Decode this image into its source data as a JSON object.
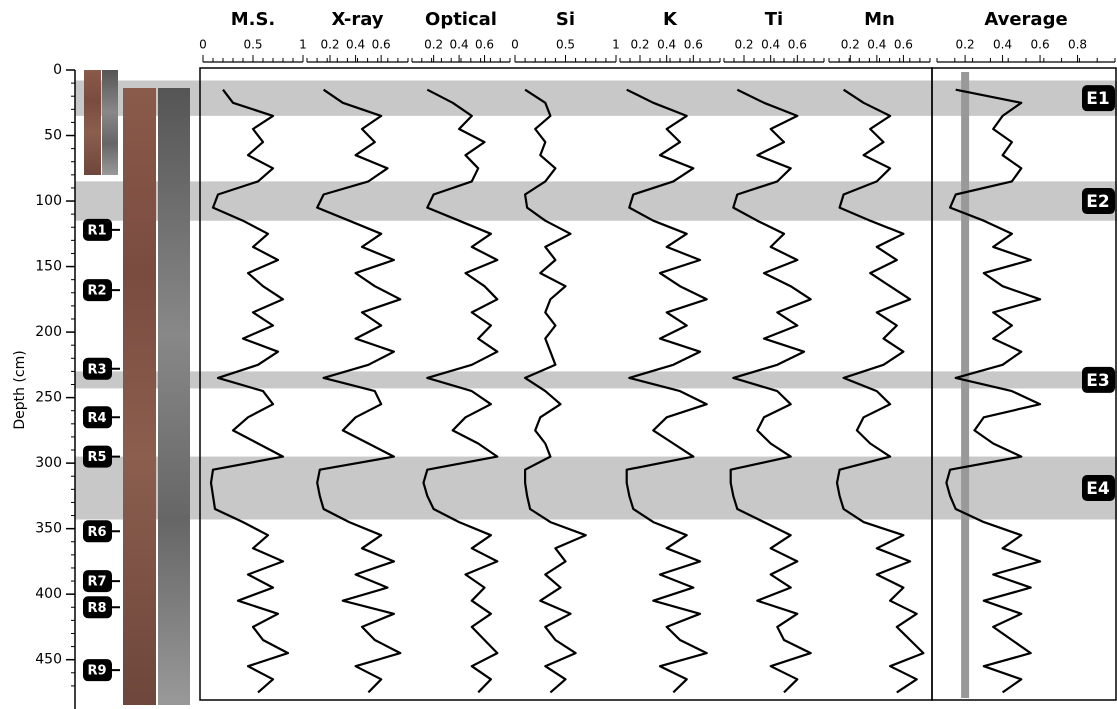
{
  "chart_data": {
    "type": "line",
    "y_label": "Depth (cm)",
    "ylim": [
      0,
      480
    ],
    "yticks": [
      0,
      50,
      100,
      150,
      200,
      250,
      300,
      350,
      400,
      450
    ],
    "depth": [
      15,
      25,
      35,
      45,
      55,
      65,
      75,
      85,
      95,
      105,
      115,
      125,
      135,
      145,
      155,
      165,
      175,
      185,
      195,
      205,
      215,
      225,
      235,
      245,
      255,
      265,
      275,
      285,
      295,
      305,
      315,
      325,
      335,
      345,
      355,
      365,
      375,
      385,
      395,
      405,
      415,
      425,
      435,
      445,
      455,
      465,
      475
    ],
    "panels": [
      {
        "title": "M.S.",
        "xlim": [
          0,
          1
        ],
        "xticks": [
          0,
          0.5,
          1
        ],
        "values": [
          0.2,
          0.3,
          0.7,
          0.5,
          0.6,
          0.45,
          0.7,
          0.55,
          0.15,
          0.1,
          0.4,
          0.65,
          0.5,
          0.75,
          0.45,
          0.6,
          0.8,
          0.5,
          0.7,
          0.4,
          0.75,
          0.55,
          0.15,
          0.6,
          0.7,
          0.45,
          0.3,
          0.55,
          0.8,
          0.1,
          0.08,
          0.1,
          0.12,
          0.4,
          0.65,
          0.5,
          0.8,
          0.45,
          0.7,
          0.35,
          0.75,
          0.5,
          0.6,
          0.85,
          0.45,
          0.7,
          0.55
        ]
      },
      {
        "title": "X-ray",
        "xlim": [
          0.02,
          0.81
        ],
        "xticks": [
          0.2,
          0.4,
          0.6
        ],
        "values": [
          0.15,
          0.3,
          0.6,
          0.45,
          0.55,
          0.4,
          0.65,
          0.5,
          0.15,
          0.1,
          0.35,
          0.6,
          0.45,
          0.7,
          0.4,
          0.55,
          0.75,
          0.45,
          0.6,
          0.4,
          0.7,
          0.5,
          0.15,
          0.55,
          0.6,
          0.4,
          0.3,
          0.5,
          0.7,
          0.12,
          0.1,
          0.12,
          0.15,
          0.35,
          0.6,
          0.45,
          0.7,
          0.4,
          0.65,
          0.3,
          0.7,
          0.45,
          0.55,
          0.75,
          0.4,
          0.6,
          0.5
        ]
      },
      {
        "title": "Optical",
        "xlim": [
          0.03,
          0.8
        ],
        "xticks": [
          0.2,
          0.4,
          0.6
        ],
        "values": [
          0.15,
          0.35,
          0.5,
          0.4,
          0.6,
          0.45,
          0.55,
          0.5,
          0.2,
          0.15,
          0.4,
          0.65,
          0.5,
          0.7,
          0.45,
          0.6,
          0.7,
          0.5,
          0.65,
          0.55,
          0.7,
          0.5,
          0.15,
          0.5,
          0.65,
          0.45,
          0.35,
          0.55,
          0.7,
          0.15,
          0.12,
          0.15,
          0.2,
          0.4,
          0.65,
          0.5,
          0.7,
          0.45,
          0.6,
          0.5,
          0.65,
          0.5,
          0.6,
          0.7,
          0.5,
          0.65,
          0.55
        ]
      },
      {
        "title": "Si",
        "xlim": [
          0,
          1
        ],
        "xticks": [
          0,
          0.5,
          1
        ],
        "values": [
          0.1,
          0.3,
          0.35,
          0.2,
          0.3,
          0.25,
          0.4,
          0.3,
          0.1,
          0.12,
          0.3,
          0.55,
          0.3,
          0.4,
          0.25,
          0.5,
          0.35,
          0.3,
          0.4,
          0.3,
          0.35,
          0.4,
          0.1,
          0.3,
          0.45,
          0.25,
          0.2,
          0.3,
          0.35,
          0.1,
          0.1,
          0.12,
          0.15,
          0.35,
          0.7,
          0.4,
          0.5,
          0.3,
          0.45,
          0.25,
          0.55,
          0.3,
          0.4,
          0.6,
          0.3,
          0.5,
          0.35
        ]
      },
      {
        "title": "K",
        "xlim": [
          0.05,
          0.8
        ],
        "xticks": [
          0.2,
          0.4,
          0.6
        ],
        "values": [
          0.1,
          0.3,
          0.55,
          0.4,
          0.5,
          0.35,
          0.6,
          0.45,
          0.15,
          0.12,
          0.3,
          0.55,
          0.4,
          0.65,
          0.35,
          0.5,
          0.7,
          0.4,
          0.55,
          0.35,
          0.65,
          0.45,
          0.12,
          0.5,
          0.7,
          0.4,
          0.3,
          0.45,
          0.6,
          0.1,
          0.1,
          0.12,
          0.15,
          0.3,
          0.55,
          0.4,
          0.65,
          0.35,
          0.6,
          0.3,
          0.65,
          0.4,
          0.5,
          0.7,
          0.35,
          0.55,
          0.45
        ]
      },
      {
        "title": "Ti",
        "xlim": [
          0.05,
          0.8
        ],
        "xticks": [
          0.2,
          0.4,
          0.6
        ],
        "values": [
          0.15,
          0.35,
          0.6,
          0.4,
          0.5,
          0.3,
          0.55,
          0.45,
          0.15,
          0.12,
          0.3,
          0.5,
          0.4,
          0.6,
          0.35,
          0.55,
          0.7,
          0.45,
          0.6,
          0.35,
          0.65,
          0.45,
          0.12,
          0.45,
          0.55,
          0.35,
          0.3,
          0.4,
          0.55,
          0.1,
          0.1,
          0.12,
          0.15,
          0.35,
          0.55,
          0.4,
          0.6,
          0.4,
          0.55,
          0.3,
          0.6,
          0.45,
          0.5,
          0.7,
          0.4,
          0.6,
          0.5
        ]
      },
      {
        "title": "Mn",
        "xlim": [
          0.04,
          0.8
        ],
        "xticks": [
          0.2,
          0.4,
          0.6
        ],
        "values": [
          0.15,
          0.3,
          0.5,
          0.35,
          0.45,
          0.3,
          0.5,
          0.4,
          0.15,
          0.12,
          0.35,
          0.6,
          0.4,
          0.55,
          0.35,
          0.5,
          0.65,
          0.4,
          0.55,
          0.45,
          0.6,
          0.45,
          0.15,
          0.4,
          0.5,
          0.3,
          0.25,
          0.35,
          0.5,
          0.12,
          0.1,
          0.12,
          0.15,
          0.3,
          0.6,
          0.4,
          0.65,
          0.4,
          0.6,
          0.5,
          0.7,
          0.55,
          0.65,
          0.75,
          0.5,
          0.7,
          0.55
        ]
      },
      {
        "title": "Average",
        "xlim": [
          0.05,
          1
        ],
        "xticks": [
          0.2,
          0.4,
          0.6,
          0.8
        ],
        "threshold": 0.2,
        "values": [
          0.15,
          0.5,
          0.4,
          0.35,
          0.45,
          0.4,
          0.5,
          0.45,
          0.15,
          0.12,
          0.3,
          0.45,
          0.35,
          0.55,
          0.3,
          0.4,
          0.6,
          0.35,
          0.45,
          0.35,
          0.5,
          0.4,
          0.15,
          0.45,
          0.6,
          0.3,
          0.25,
          0.35,
          0.5,
          0.12,
          0.1,
          0.12,
          0.15,
          0.3,
          0.5,
          0.4,
          0.6,
          0.35,
          0.55,
          0.3,
          0.5,
          0.35,
          0.45,
          0.55,
          0.3,
          0.5,
          0.4
        ]
      }
    ],
    "events": [
      {
        "label": "E1",
        "top": 8,
        "bottom": 35
      },
      {
        "label": "E2",
        "top": 85,
        "bottom": 115
      },
      {
        "label": "E3",
        "top": 230,
        "bottom": 243
      },
      {
        "label": "E4",
        "top": 295,
        "bottom": 343
      }
    ],
    "references": [
      {
        "label": "R1",
        "depth": 122
      },
      {
        "label": "R2",
        "depth": 168
      },
      {
        "label": "R3",
        "depth": 228
      },
      {
        "label": "R4",
        "depth": 265
      },
      {
        "label": "R5",
        "depth": 295
      },
      {
        "label": "R6",
        "depth": 352
      },
      {
        "label": "R7",
        "depth": 390
      },
      {
        "label": "R8",
        "depth": 410
      },
      {
        "label": "R9",
        "depth": 458
      }
    ]
  }
}
